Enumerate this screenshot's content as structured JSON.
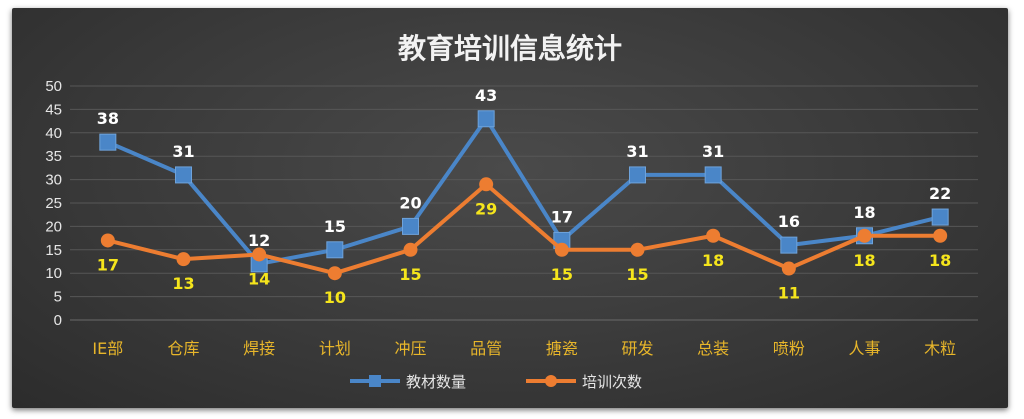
{
  "chart_data": {
    "type": "line",
    "title": "教育培训信息统计",
    "categories": [
      "IE部",
      "仓库",
      "焊接",
      "计划",
      "冲压",
      "品管",
      "搪瓷",
      "研发",
      "总装",
      "喷粉",
      "人事",
      "木粒"
    ],
    "ylim": [
      0,
      50
    ],
    "yticks": [
      0,
      5,
      10,
      15,
      20,
      25,
      30,
      35,
      40,
      45,
      50
    ],
    "grid": true,
    "legend_position": "bottom",
    "series": [
      {
        "name": "教材数量",
        "color": "#4a86c8",
        "marker": "square",
        "values": [
          38,
          31,
          12,
          15,
          20,
          43,
          17,
          31,
          31,
          16,
          18,
          22
        ]
      },
      {
        "name": "培训次数",
        "color": "#ed7d31",
        "marker": "circle",
        "values": [
          17,
          13,
          14,
          10,
          15,
          29,
          15,
          15,
          18,
          11,
          18,
          18
        ]
      }
    ]
  }
}
